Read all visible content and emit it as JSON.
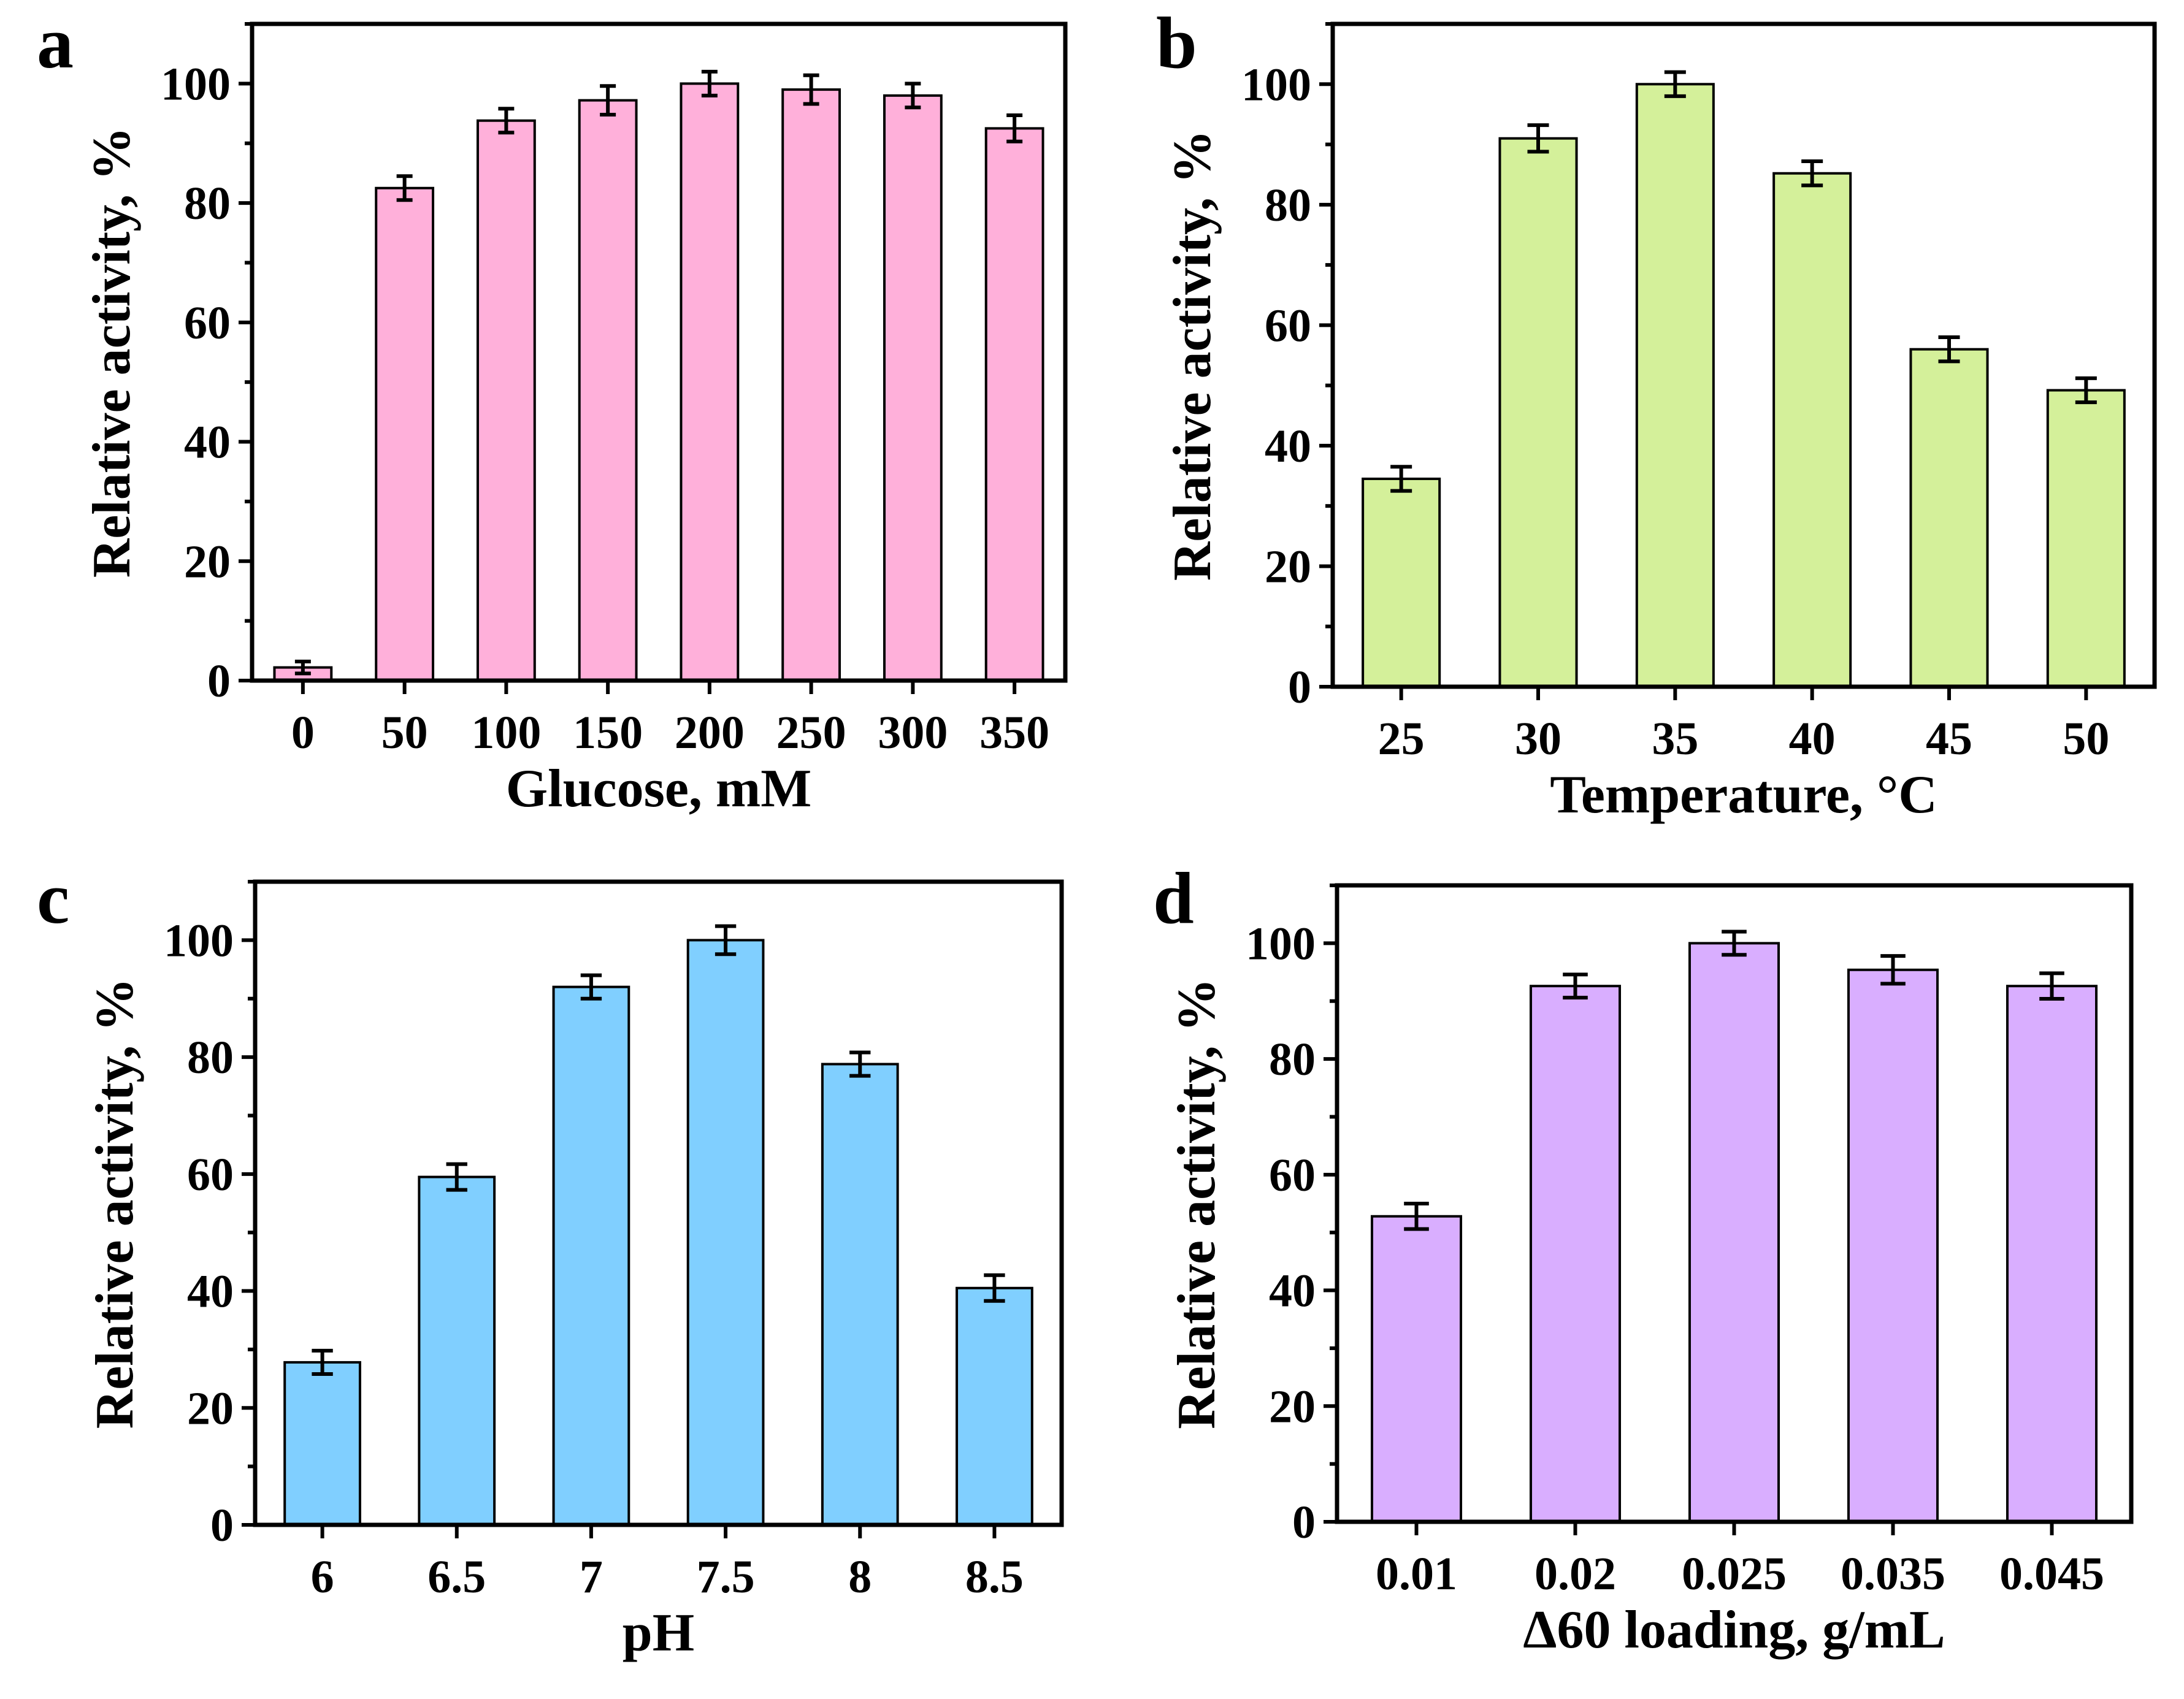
{
  "chart_data": [
    {
      "panel": "a",
      "type": "bar",
      "xlabel": "Glucose, mM",
      "ylabel": "Relative activity, %",
      "categories": [
        "0",
        "50",
        "100",
        "150",
        "200",
        "250",
        "300",
        "350"
      ],
      "values": [
        2.2,
        82.5,
        93.8,
        97.2,
        100,
        99,
        98,
        92.5
      ],
      "errors": [
        1.0,
        2.0,
        2.0,
        2.4,
        2.0,
        2.4,
        2.0,
        2.2
      ],
      "ylim": [
        0,
        110
      ],
      "yticks": [
        0,
        20,
        40,
        60,
        80,
        100
      ],
      "color": "#FFB0DA"
    },
    {
      "panel": "b",
      "type": "bar",
      "xlabel": "Temperature, °C",
      "ylabel": "Relative activity, %",
      "categories": [
        "25",
        "30",
        "35",
        "40",
        "45",
        "50"
      ],
      "values": [
        34.5,
        91,
        100,
        85.2,
        56,
        49.2
      ],
      "errors": [
        2.0,
        2.2,
        2.0,
        2.0,
        2.0,
        2.0
      ],
      "ylim": [
        0,
        110
      ],
      "yticks": [
        0,
        20,
        40,
        60,
        80,
        100
      ],
      "color": "#D4F09A"
    },
    {
      "panel": "c",
      "type": "bar",
      "xlabel": "pH",
      "ylabel": "Relative activity, %",
      "categories": [
        "6",
        "6.5",
        "7",
        "7.5",
        "8",
        "8.5"
      ],
      "values": [
        27.8,
        59.5,
        92,
        100,
        78.8,
        40.5
      ],
      "errors": [
        2.0,
        2.2,
        2.0,
        2.4,
        2.0,
        2.2
      ],
      "ylim": [
        0,
        110
      ],
      "yticks": [
        0,
        20,
        40,
        60,
        80,
        100
      ],
      "color": "#80CFFF"
    },
    {
      "panel": "d",
      "type": "bar",
      "xlabel": "Δ60 loading, g/mL",
      "ylabel": "Relative activity, %",
      "categories": [
        "0.01",
        "0.02",
        "0.025",
        "0.035",
        "0.045"
      ],
      "values": [
        52.8,
        92.6,
        100,
        95.4,
        92.6
      ],
      "errors": [
        2.2,
        2.0,
        2.0,
        2.4,
        2.2
      ],
      "ylim": [
        0,
        110
      ],
      "yticks": [
        0,
        20,
        40,
        60,
        80,
        100
      ],
      "color": "#D9AEFF"
    }
  ]
}
